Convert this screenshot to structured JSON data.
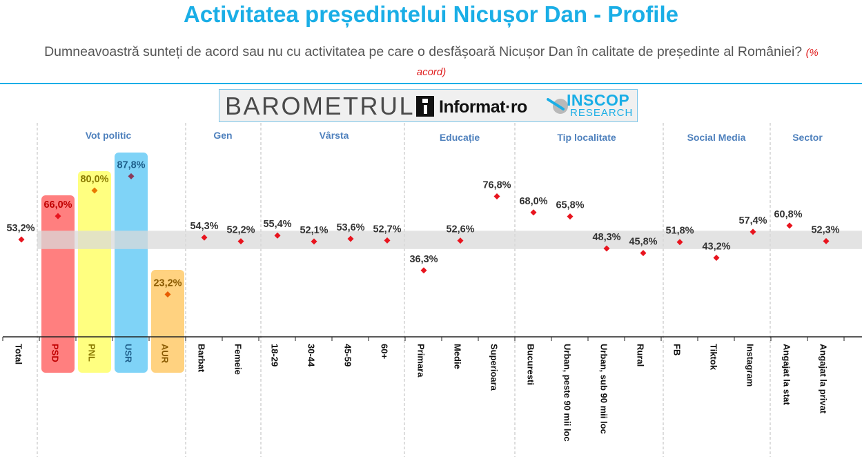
{
  "header": {
    "title": "Activitatea președintelui Nicușor Dan - Profile",
    "subtitle": "Dumneavoastră sunteți de acord sau nu cu activitatea pe care o desfășoară Nicușor Dan în calitate de președinte al României?",
    "note": "(% acord)"
  },
  "logo": {
    "barometer": "BAROMETRUL",
    "informat": "Informat·ro",
    "inscop": "INSCOP",
    "research": "RESEARCH"
  },
  "chart_data": {
    "type": "scatter",
    "unit": "%",
    "ylim": [
      0,
      100
    ],
    "reference_band": [
      48,
      58
    ],
    "groups": [
      {
        "label": "Vot politic",
        "categories": [
          "PSD",
          "PNL",
          "USR",
          "AUR"
        ]
      },
      {
        "label": "Gen",
        "categories": [
          "Barbat",
          "Femeie"
        ]
      },
      {
        "label": "Vârsta",
        "categories": [
          "18-29",
          "30-44",
          "45-59",
          "60+"
        ]
      },
      {
        "label": "Educație",
        "categories": [
          "Primara",
          "Medie",
          "Superioara"
        ]
      },
      {
        "label": "Tip localitate",
        "categories": [
          "Bucuresti",
          "Urban, peste 90 mii loc",
          "Urban, sub 90 mii loc",
          "Rural"
        ]
      },
      {
        "label": "Social Media",
        "categories": [
          "FB",
          "Tiktok",
          "Instagram"
        ]
      },
      {
        "label": "Sector",
        "categories": [
          "Angajat la stat",
          "Angajat la privat"
        ]
      }
    ],
    "categories": [
      "Total",
      "PSD",
      "PNL",
      "USR",
      "AUR",
      "Barbat",
      "Femeie",
      "18-29",
      "30-44",
      "45-59",
      "60+",
      "Primara",
      "Medie",
      "Superioara",
      "Bucuresti",
      "Urban, peste 90 mii loc",
      "Urban, sub 90 mii loc",
      "Rural",
      "FB",
      "Tiktok",
      "Instagram",
      "Angajat la stat",
      "Angajat la privat"
    ],
    "values": [
      53.2,
      66.0,
      80.0,
      87.8,
      23.2,
      54.3,
      52.2,
      55.4,
      52.1,
      53.6,
      52.7,
      36.3,
      52.6,
      76.8,
      68.0,
      65.8,
      48.3,
      45.8,
      51.8,
      43.2,
      57.4,
      60.8,
      52.3
    ],
    "labels": [
      "53,2%",
      "66,0%",
      "80,0%",
      "87,8%",
      "23,2%",
      "54,3%",
      "52,2%",
      "55,4%",
      "52,1%",
      "53,6%",
      "52,7%",
      "36,3%",
      "52,6%",
      "76,8%",
      "68,0%",
      "65,8%",
      "48,3%",
      "45,8%",
      "51,8%",
      "43,2%",
      "57,4%",
      "60,8%",
      "52,3%"
    ],
    "party_colors": {
      "PSD": {
        "fill": "#ff7f7f",
        "text": "#c00000"
      },
      "PNL": {
        "fill": "#ffff80",
        "text": "#8a7a00"
      },
      "USR": {
        "fill": "#7fd3f7",
        "text": "#1f5f8b"
      },
      "AUR": {
        "fill": "#ffd280",
        "text": "#8a5a00"
      }
    },
    "colors": {
      "marker": "#e8141e",
      "label": "#333333",
      "group_label": "#4f81bd",
      "band": "#d9d9d9",
      "axis": "#222222"
    }
  }
}
